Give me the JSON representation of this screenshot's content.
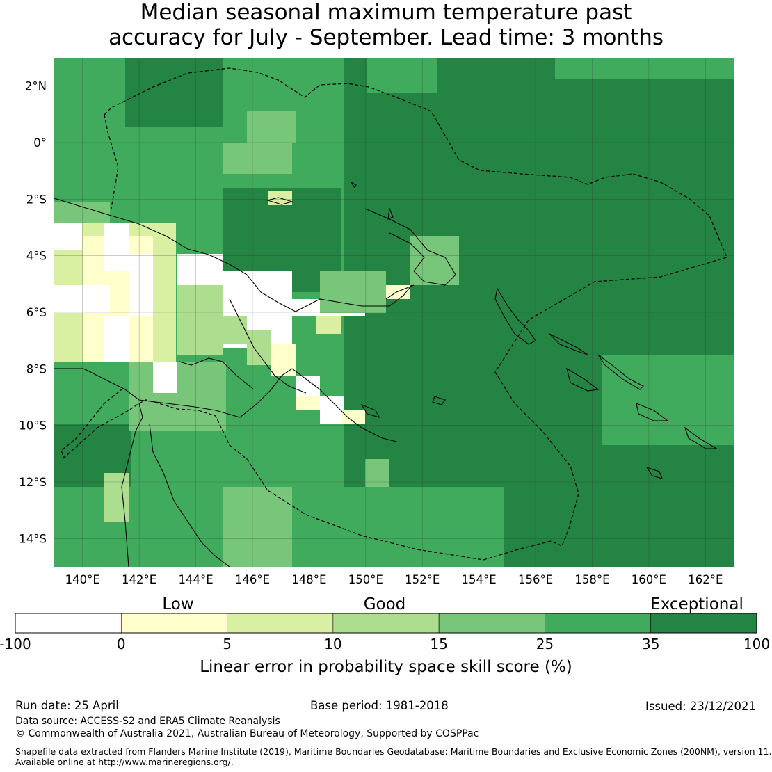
{
  "title": {
    "line1": "Median seasonal maximum temperature past",
    "line2": "accuracy for July - September. Lead time: 3 months"
  },
  "map": {
    "lon_ticks": [
      "140°E",
      "142°E",
      "144°E",
      "146°E",
      "148°E",
      "150°E",
      "152°E",
      "154°E",
      "156°E",
      "158°E",
      "160°E",
      "162°E"
    ],
    "lat_ticks": [
      "2°N",
      "0°",
      "2°S",
      "4°S",
      "6°S",
      "8°S",
      "10°S",
      "12°S",
      "14°S"
    ],
    "lon_range": [
      139,
      163
    ],
    "lat_range": [
      -15,
      3
    ]
  },
  "colorbar": {
    "category_labels": [
      "Low",
      "Good",
      "Exceptional"
    ],
    "tick_labels": [
      "-100",
      "0",
      "5",
      "10",
      "15",
      "25",
      "35",
      "100"
    ],
    "colors": [
      "#ffffff",
      "#ffffcc",
      "#d9f0a3",
      "#addd8e",
      "#78c679",
      "#41ab5d",
      "#238443"
    ],
    "label": "Linear error in probability space skill score (%)"
  },
  "footer": {
    "run_date": "Run date: 25 April",
    "base_period": "Base period: 1981-2018",
    "issued": "Issued: 23/12/2021",
    "data_source": "Data source: ACCESS-S2 and ERA5 Climate Reanalysis",
    "copyright": "© Commonwealth of Australia 2021, Australian Bureau of Meteorology, Supported by COSPPac",
    "shapefile_line1": "Shapefile data extracted from Flanders Marine Institute (2019), Maritime Boundaries Geodatabase: Maritime Boundaries and Exclusive Economic Zones (200NM), version 11.",
    "shapefile_line2": "Available online at http://www.marineregions.org/."
  }
}
